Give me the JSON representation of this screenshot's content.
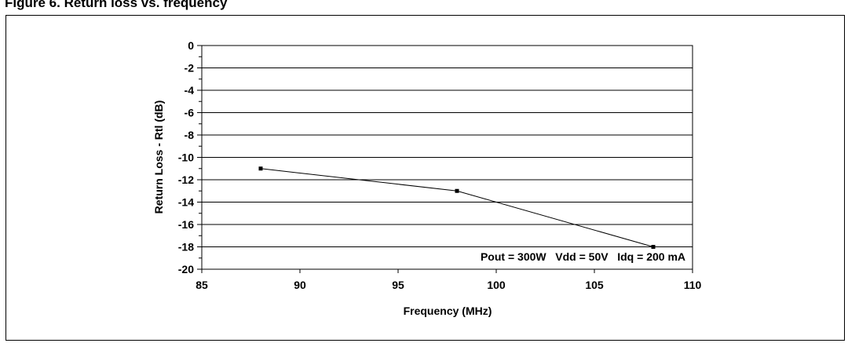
{
  "figure": {
    "caption": "Figure 6. Return loss vs. frequency"
  },
  "chart_data": {
    "type": "line",
    "title": "",
    "xlabel": "Frequency (MHz)",
    "ylabel": "Return Loss - Rtl (dB)",
    "xlim": [
      85,
      110
    ],
    "ylim": [
      -20,
      0
    ],
    "xticks": [
      85,
      90,
      95,
      100,
      105,
      110
    ],
    "yticks": [
      0,
      -2,
      -4,
      -6,
      -8,
      -10,
      -12,
      -14,
      -16,
      -18,
      -20
    ],
    "grid": "horizontal",
    "series": [
      {
        "x": [
          88,
          98,
          108
        ],
        "y": [
          -11,
          -13,
          -18
        ]
      }
    ],
    "annotations": [
      {
        "text": "Pout = 300W   Vdd = 50V   Idq = 200 mA"
      }
    ]
  }
}
